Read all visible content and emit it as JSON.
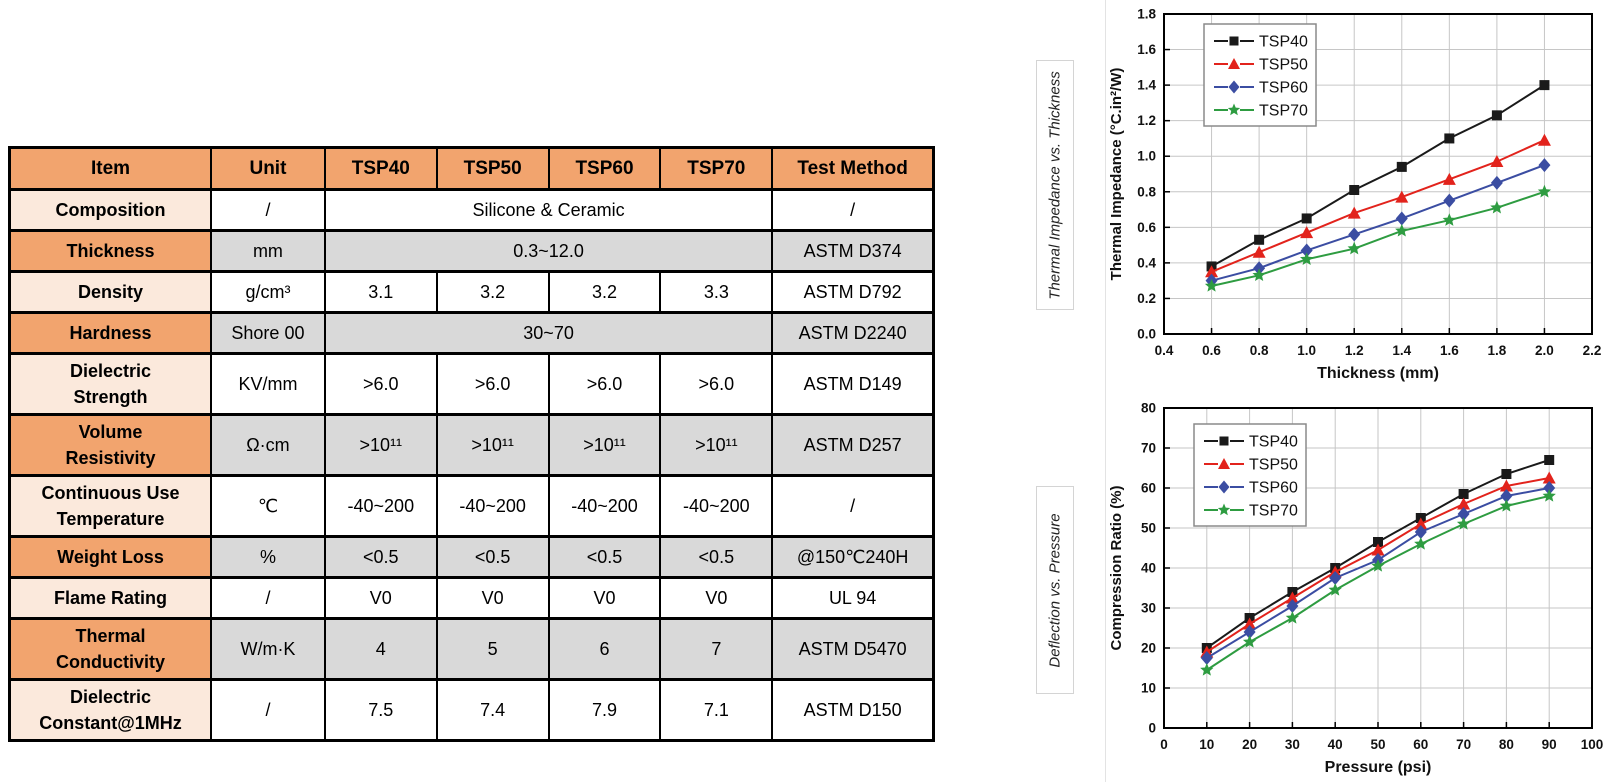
{
  "colors": {
    "header_orange": "#F2A46E",
    "item_peach": "#FBE9DC",
    "row_gray": "#D9D9D9",
    "table_border": "#000000",
    "grid_gray": "#C6C6C6",
    "series_black": "#1A1A1A",
    "series_red": "#E2231C",
    "series_blue": "#3B4DA2",
    "series_green": "#2E9C41"
  },
  "table": {
    "columns": [
      "Item",
      "Unit",
      "TSP40",
      "TSP50",
      "TSP60",
      "TSP70",
      "Test Method"
    ],
    "rows": [
      {
        "item": "Composition",
        "unit": "/",
        "merged": "Silicone & Ceramic",
        "test": "/",
        "shade": false
      },
      {
        "item": "Thickness",
        "unit": "mm",
        "merged": "0.3~12.0",
        "test": "ASTM D374",
        "shade": true
      },
      {
        "item": "Density",
        "unit": "g/cm³",
        "values": [
          "3.1",
          "3.2",
          "3.2",
          "3.3"
        ],
        "test": "ASTM D792",
        "shade": false
      },
      {
        "item": "Hardness",
        "unit": "Shore 00",
        "merged": "30~70",
        "test": "ASTM D2240",
        "shade": true
      },
      {
        "item": "Dielectric\nStrength",
        "unit": "KV/mm",
        "values": [
          ">6.0",
          ">6.0",
          ">6.0",
          ">6.0"
        ],
        "test": "ASTM D149",
        "shade": false
      },
      {
        "item": "Volume\nResistivity",
        "unit": "Ω·cm",
        "values": [
          ">10¹¹",
          ">10¹¹",
          ">10¹¹",
          ">10¹¹"
        ],
        "test": "ASTM D257",
        "shade": true
      },
      {
        "item": "Continuous Use\nTemperature",
        "unit": "℃",
        "values": [
          "-40~200",
          "-40~200",
          "-40~200",
          "-40~200"
        ],
        "test": "/",
        "shade": false
      },
      {
        "item": "Weight Loss",
        "unit": "%",
        "values": [
          "<0.5",
          "<0.5",
          "<0.5",
          "<0.5"
        ],
        "test": "@150℃240H",
        "shade": true
      },
      {
        "item": "Flame Rating",
        "unit": "/",
        "values": [
          "V0",
          "V0",
          "V0",
          "V0"
        ],
        "test": "UL 94",
        "shade": false
      },
      {
        "item": "Thermal\nConductivity",
        "unit": "W/m·K",
        "values": [
          "4",
          "5",
          "6",
          "7"
        ],
        "test": "ASTM D5470",
        "shade": true
      },
      {
        "item": "Dielectric\nConstant@1MHz",
        "unit": "/",
        "values": [
          "7.5",
          "7.4",
          "7.9",
          "7.1"
        ],
        "test": "ASTM D150",
        "shade": false
      }
    ]
  },
  "chart_data": [
    {
      "type": "line",
      "side_label": "Thermal Impedance vs. Thickness",
      "xlabel": "Thickness (mm)",
      "ylabel": "Thermal Impedance (°C.in²/W)",
      "xlim": [
        0.4,
        2.2
      ],
      "xtick_step": 0.2,
      "ylim": [
        0.0,
        1.8
      ],
      "ytick_step": 0.2,
      "grid": true,
      "legend_position": "top-left",
      "x": [
        0.6,
        0.8,
        1.0,
        1.2,
        1.4,
        1.6,
        1.8,
        2.0
      ],
      "series": [
        {
          "name": "TSP40",
          "color": "#1A1A1A",
          "marker": "square",
          "values": [
            0.38,
            0.53,
            0.65,
            0.81,
            0.94,
            1.1,
            1.23,
            1.4
          ]
        },
        {
          "name": "TSP50",
          "color": "#E2231C",
          "marker": "triangle",
          "values": [
            0.35,
            0.46,
            0.57,
            0.68,
            0.77,
            0.87,
            0.97,
            1.09
          ]
        },
        {
          "name": "TSP60",
          "color": "#3B4DA2",
          "marker": "diamond",
          "values": [
            0.3,
            0.37,
            0.47,
            0.56,
            0.65,
            0.75,
            0.85,
            0.95
          ]
        },
        {
          "name": "TSP70",
          "color": "#2E9C41",
          "marker": "star",
          "values": [
            0.27,
            0.33,
            0.42,
            0.48,
            0.58,
            0.64,
            0.71,
            0.8
          ]
        }
      ]
    },
    {
      "type": "line",
      "side_label": "Deflection vs. Pressure",
      "xlabel": "Pressure (psi)",
      "ylabel": "Compression Ratio (%)",
      "xlim": [
        0,
        100
      ],
      "xtick_step": 10,
      "ylim": [
        0,
        80
      ],
      "ytick_step": 10,
      "grid": true,
      "legend_position": "top-left",
      "x": [
        10,
        20,
        30,
        40,
        50,
        60,
        70,
        80,
        90
      ],
      "series": [
        {
          "name": "TSP40",
          "color": "#1A1A1A",
          "marker": "square",
          "values": [
            20.0,
            27.5,
            34.0,
            40.0,
            46.5,
            52.5,
            58.5,
            63.5,
            67.0
          ]
        },
        {
          "name": "TSP50",
          "color": "#E2231C",
          "marker": "triangle",
          "values": [
            19.0,
            26.0,
            32.5,
            39.0,
            44.5,
            51.0,
            56.0,
            60.5,
            62.5
          ]
        },
        {
          "name": "TSP60",
          "color": "#3B4DA2",
          "marker": "diamond",
          "values": [
            17.5,
            24.0,
            30.5,
            37.5,
            42.0,
            49.0,
            53.5,
            58.0,
            60.0
          ]
        },
        {
          "name": "TSP70",
          "color": "#2E9C41",
          "marker": "star",
          "values": [
            14.5,
            21.5,
            27.5,
            34.5,
            40.5,
            46.0,
            51.0,
            55.5,
            58.0
          ]
        }
      ]
    }
  ]
}
